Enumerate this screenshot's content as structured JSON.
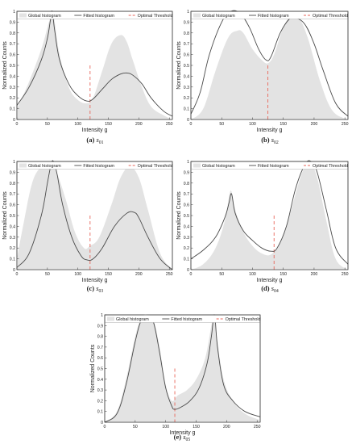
{
  "legend": {
    "global": "Global histogram",
    "fitted": "Fitted histogram",
    "threshold": "Optimal Threshold"
  },
  "colors": {
    "histogram_fill": "#e3e3e3",
    "fitted_line": "#4a4a4a",
    "threshold_line": "#e8665a",
    "axis": "#333333"
  },
  "chart_data": [
    {
      "type": "area",
      "caption_label": "(a)",
      "caption_sub": "01",
      "xlabel": "Intensity g",
      "ylabel": "Normalized Counts",
      "xlim": [
        0,
        255
      ],
      "ylim": [
        0,
        1
      ],
      "xticks": [
        0,
        50,
        100,
        150,
        200,
        250
      ],
      "yticks": [
        0,
        0.1,
        0.2,
        0.3,
        0.4,
        0.5,
        0.6,
        0.7,
        0.8,
        0.9,
        1
      ],
      "histogram": {
        "x": [
          0,
          20,
          40,
          50,
          55,
          58,
          62,
          70,
          85,
          100,
          115,
          125,
          140,
          155,
          170,
          180,
          190,
          205,
          220,
          240,
          255
        ],
        "y": [
          0.1,
          0.35,
          0.65,
          0.85,
          0.95,
          1.0,
          0.9,
          0.6,
          0.3,
          0.18,
          0.15,
          0.2,
          0.45,
          0.7,
          0.78,
          0.72,
          0.55,
          0.3,
          0.12,
          0.04,
          0.0
        ]
      },
      "fitted": {
        "x": [
          0,
          20,
          40,
          50,
          55,
          58,
          62,
          70,
          85,
          100,
          115,
          125,
          140,
          155,
          170,
          180,
          190,
          205,
          220,
          240,
          255
        ],
        "y": [
          0.13,
          0.3,
          0.55,
          0.75,
          0.92,
          1.0,
          0.82,
          0.55,
          0.33,
          0.22,
          0.17,
          0.19,
          0.28,
          0.37,
          0.42,
          0.43,
          0.41,
          0.33,
          0.2,
          0.08,
          0.03
        ]
      },
      "threshold": 120,
      "threshold_top": 0.5
    },
    {
      "type": "area",
      "caption_label": "(b)",
      "caption_sub": "02",
      "xlabel": "Intensity g",
      "ylabel": "Normalized Counts",
      "xlim": [
        0,
        255
      ],
      "ylim": [
        0,
        1
      ],
      "xticks": [
        0,
        50,
        100,
        150,
        200,
        250
      ],
      "yticks": [
        0,
        0.1,
        0.2,
        0.3,
        0.4,
        0.5,
        0.6,
        0.7,
        0.8,
        0.9,
        1
      ],
      "histogram": {
        "x": [
          0,
          20,
          40,
          60,
          75,
          85,
          100,
          115,
          125,
          135,
          150,
          165,
          175,
          190,
          210,
          230,
          255
        ],
        "y": [
          0.0,
          0.1,
          0.45,
          0.75,
          0.82,
          0.8,
          0.65,
          0.55,
          0.52,
          0.6,
          0.85,
          0.98,
          0.95,
          0.75,
          0.35,
          0.08,
          0.0
        ]
      },
      "fitted": {
        "x": [
          0,
          15,
          30,
          50,
          65,
          80,
          95,
          110,
          122,
          130,
          145,
          160,
          170,
          185,
          200,
          215,
          235,
          255
        ],
        "y": [
          0.05,
          0.25,
          0.6,
          0.9,
          1.0,
          0.98,
          0.85,
          0.65,
          0.55,
          0.58,
          0.8,
          0.93,
          0.94,
          0.88,
          0.7,
          0.45,
          0.15,
          0.03
        ]
      },
      "threshold": 125,
      "threshold_top": 0.5
    },
    {
      "type": "area",
      "caption_label": "(c)",
      "caption_sub": "03",
      "xlabel": "Intensity g",
      "ylabel": "Normalized Counts",
      "xlim": [
        0,
        255
      ],
      "ylim": [
        0,
        1
      ],
      "xticks": [
        0,
        50,
        100,
        150,
        200,
        250
      ],
      "yticks": [
        0,
        0.1,
        0.2,
        0.3,
        0.4,
        0.5,
        0.6,
        0.7,
        0.8,
        0.9,
        1
      ],
      "histogram": {
        "x": [
          0,
          10,
          25,
          40,
          55,
          65,
          80,
          95,
          110,
          120,
          135,
          155,
          170,
          185,
          200,
          215,
          235,
          255
        ],
        "y": [
          0.1,
          0.4,
          0.8,
          0.95,
          0.97,
          0.9,
          0.65,
          0.35,
          0.2,
          0.22,
          0.3,
          0.6,
          0.85,
          0.95,
          0.85,
          0.55,
          0.15,
          0.0
        ]
      },
      "fitted": {
        "x": [
          0,
          20,
          40,
          50,
          56,
          60,
          66,
          75,
          90,
          105,
          115,
          125,
          140,
          160,
          180,
          192,
          200,
          215,
          235,
          255
        ],
        "y": [
          0.02,
          0.15,
          0.5,
          0.8,
          0.97,
          1.0,
          0.88,
          0.6,
          0.3,
          0.13,
          0.09,
          0.1,
          0.2,
          0.4,
          0.52,
          0.53,
          0.48,
          0.3,
          0.1,
          0.0
        ]
      },
      "threshold": 120,
      "threshold_top": 0.5
    },
    {
      "type": "area",
      "caption_label": "(d)",
      "caption_sub": "04",
      "xlabel": "Intensity g",
      "ylabel": "Normalized Counts",
      "xlim": [
        0,
        255
      ],
      "ylim": [
        0,
        1
      ],
      "xticks": [
        0,
        50,
        100,
        150,
        200,
        250
      ],
      "yticks": [
        0,
        0.1,
        0.2,
        0.3,
        0.4,
        0.5,
        0.6,
        0.7,
        0.8,
        0.9,
        1
      ],
      "histogram": {
        "x": [
          0,
          20,
          40,
          55,
          62,
          66,
          72,
          85,
          100,
          115,
          130,
          145,
          160,
          175,
          185,
          195,
          205,
          220,
          235,
          255
        ],
        "y": [
          0.0,
          0.05,
          0.2,
          0.45,
          0.68,
          0.72,
          0.55,
          0.35,
          0.22,
          0.15,
          0.14,
          0.25,
          0.5,
          0.8,
          0.95,
          0.97,
          0.85,
          0.45,
          0.1,
          0.0
        ]
      },
      "fitted": {
        "x": [
          0,
          20,
          40,
          55,
          62,
          66,
          72,
          85,
          100,
          115,
          130,
          140,
          155,
          170,
          185,
          195,
          205,
          220,
          235,
          255
        ],
        "y": [
          0.1,
          0.18,
          0.3,
          0.48,
          0.62,
          0.7,
          0.52,
          0.36,
          0.27,
          0.2,
          0.17,
          0.2,
          0.4,
          0.75,
          0.97,
          1.0,
          0.9,
          0.55,
          0.2,
          0.05
        ]
      },
      "threshold": 135,
      "threshold_top": 0.5
    },
    {
      "type": "area",
      "caption_label": "(e)",
      "caption_sub": "05",
      "xlabel": "Intensity g",
      "ylabel": "Normalized Counts",
      "xlim": [
        0,
        255
      ],
      "ylim": [
        0,
        1
      ],
      "xticks": [
        0,
        50,
        100,
        150,
        200,
        250
      ],
      "yticks": [
        0,
        0.1,
        0.2,
        0.3,
        0.4,
        0.5,
        0.6,
        0.7,
        0.8,
        0.9,
        1
      ],
      "histogram": {
        "x": [
          0,
          20,
          35,
          50,
          60,
          70,
          80,
          90,
          100,
          110,
          120,
          135,
          150,
          165,
          175,
          180,
          185,
          195,
          210,
          230,
          255
        ],
        "y": [
          0.0,
          0.1,
          0.4,
          0.8,
          0.97,
          1.0,
          0.95,
          0.7,
          0.35,
          0.2,
          0.25,
          0.3,
          0.4,
          0.6,
          0.9,
          1.0,
          0.75,
          0.4,
          0.2,
          0.08,
          0.02
        ]
      },
      "fitted": {
        "x": [
          0,
          20,
          35,
          50,
          60,
          70,
          80,
          90,
          100,
          110,
          115,
          125,
          140,
          155,
          168,
          175,
          180,
          185,
          195,
          210,
          230,
          255
        ],
        "y": [
          0.0,
          0.08,
          0.35,
          0.75,
          0.95,
          0.99,
          0.93,
          0.65,
          0.32,
          0.15,
          0.12,
          0.14,
          0.2,
          0.32,
          0.55,
          0.8,
          1.0,
          0.7,
          0.35,
          0.2,
          0.1,
          0.05
        ]
      },
      "threshold": 115,
      "threshold_top": 0.5
    }
  ]
}
